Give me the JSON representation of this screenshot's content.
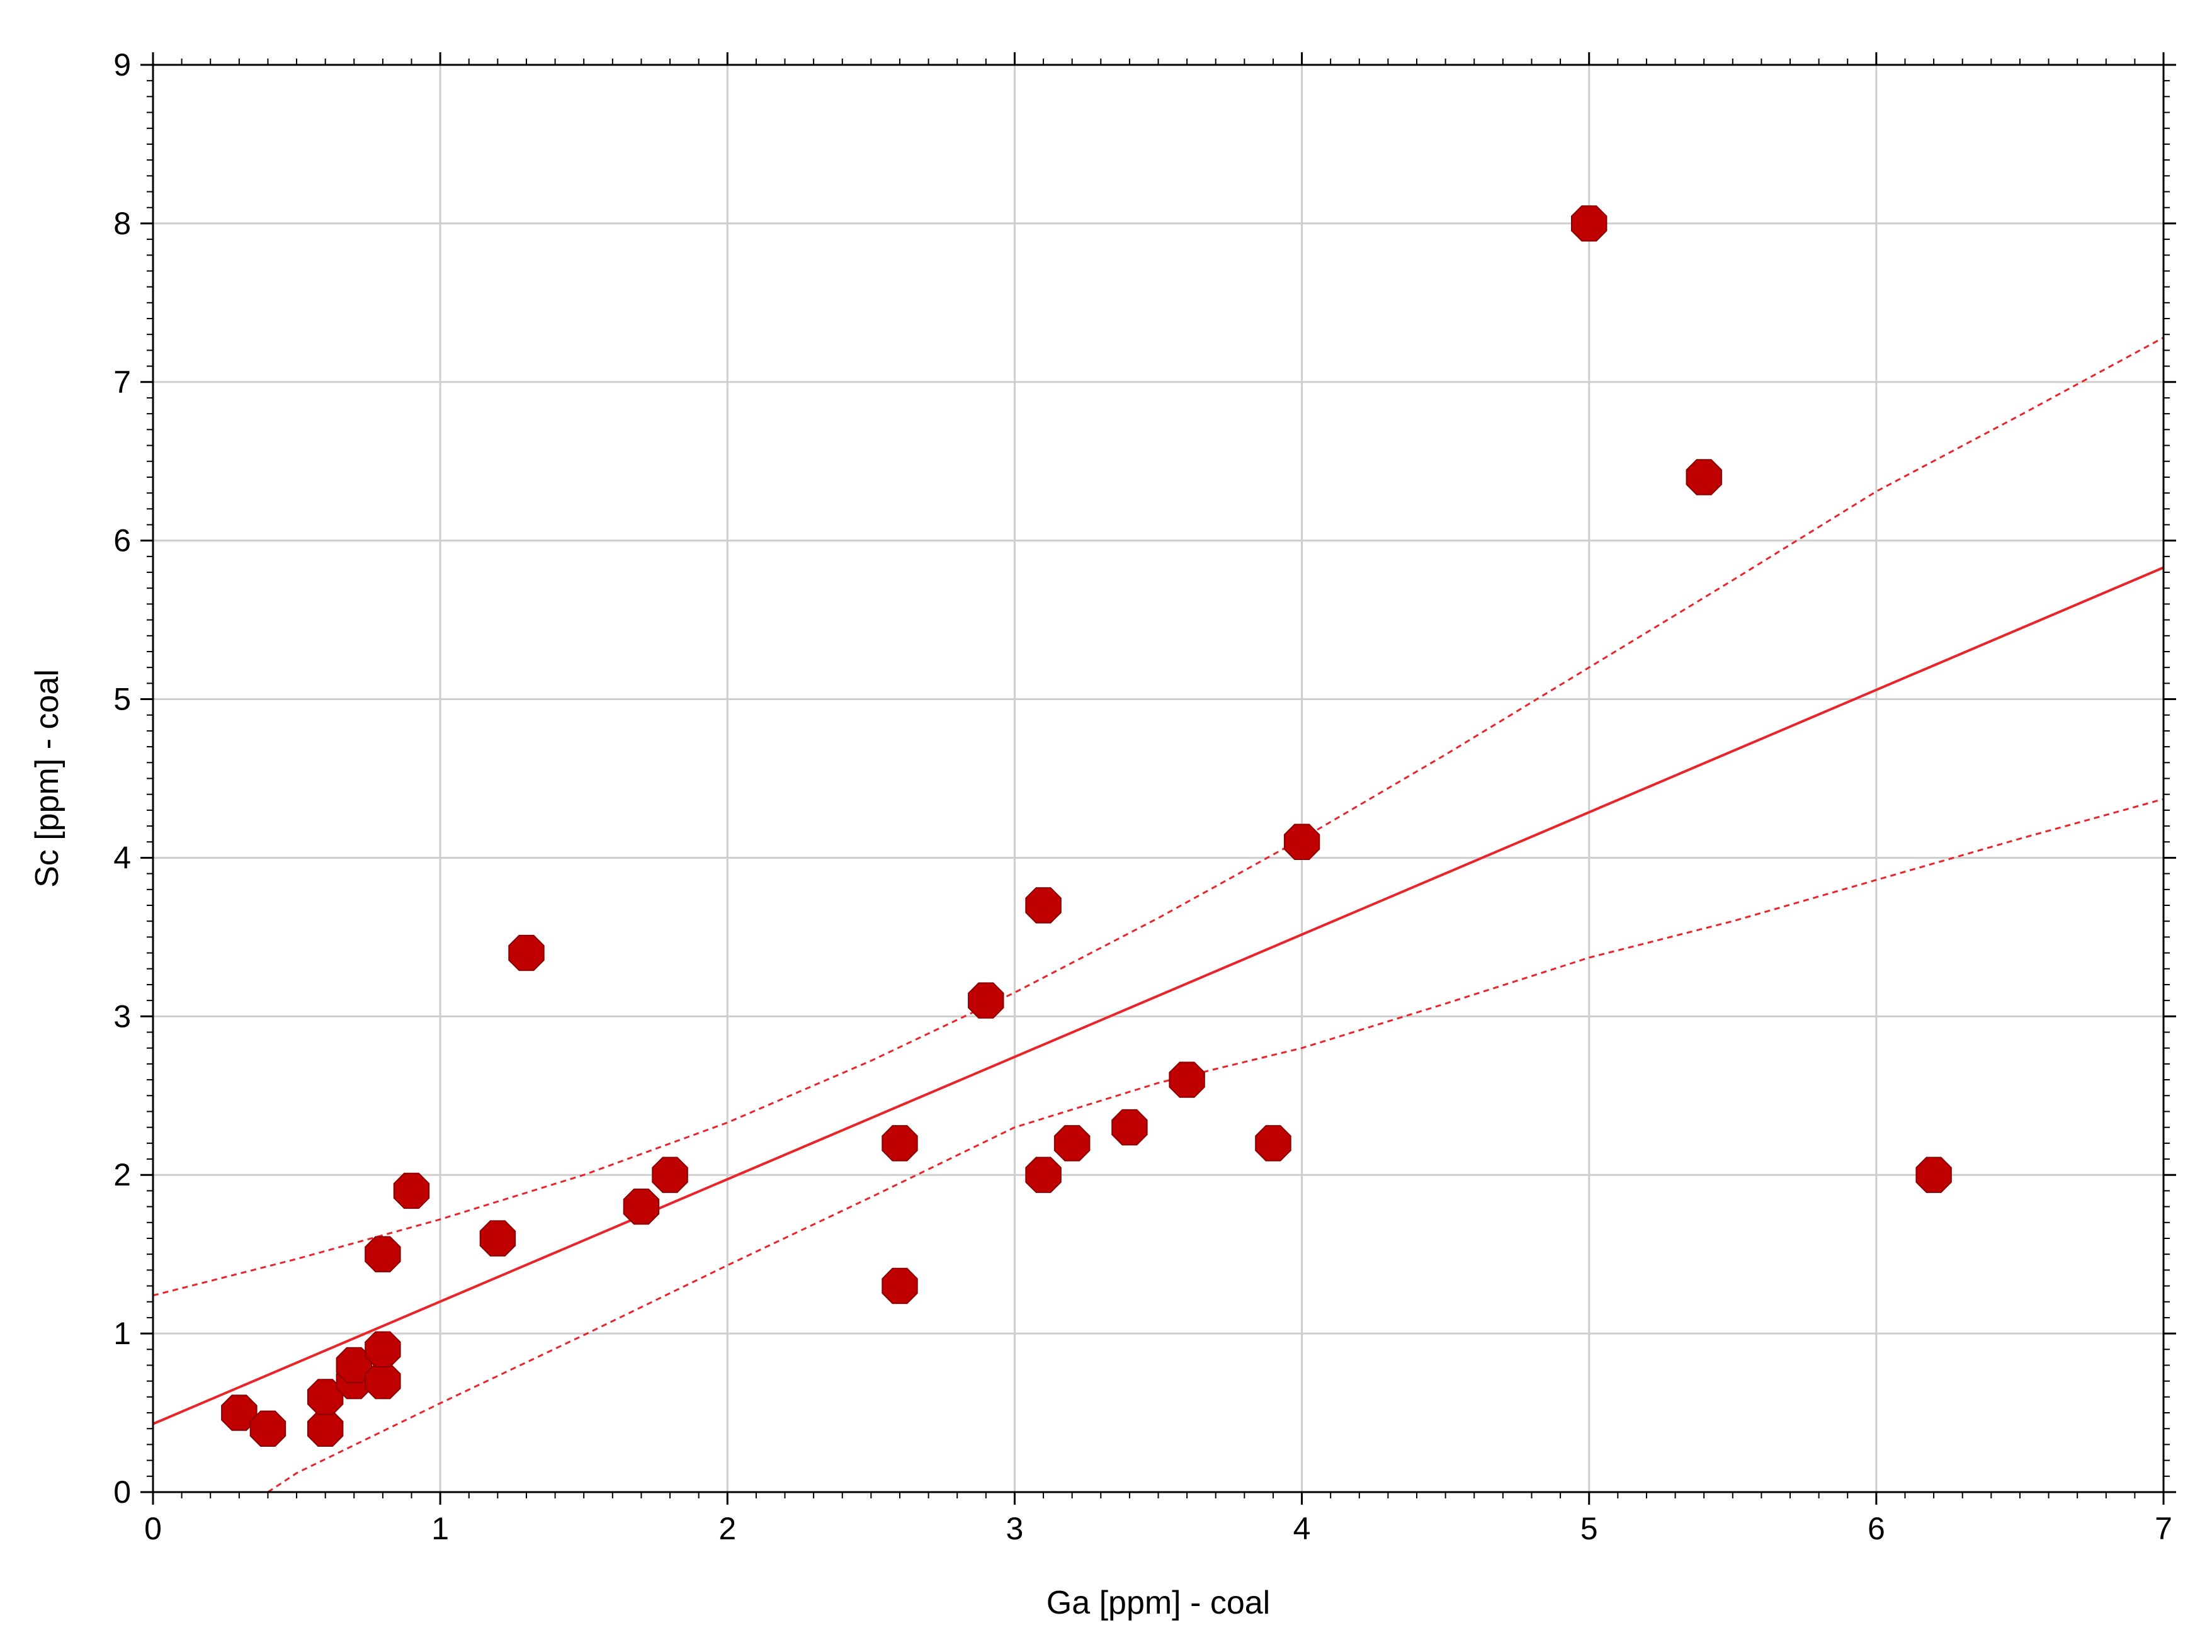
{
  "chart_data": {
    "type": "scatter",
    "xlabel": "Ga [ppm] - coal",
    "ylabel": "Sc [ppm] - coal",
    "xlim": [
      0,
      7
    ],
    "ylim": [
      0,
      9
    ],
    "xticks": [
      "0",
      "1",
      "2",
      "3",
      "4",
      "5",
      "6",
      "7"
    ],
    "yticks": [
      "0",
      "1",
      "2",
      "3",
      "4",
      "5",
      "6",
      "7",
      "8",
      "9"
    ],
    "grid": true,
    "colors": {
      "points": "#c00000",
      "fit_line": "#e8252a",
      "grid": "#cfcfcf"
    },
    "series": [
      {
        "type": "scatter",
        "x": [
          0.3,
          0.4,
          0.6,
          0.6,
          0.7,
          0.7,
          0.8,
          0.8,
          0.8,
          0.9,
          1.2,
          1.3,
          1.7,
          1.8,
          2.6,
          2.6,
          2.9,
          3.1,
          3.1,
          3.2,
          3.4,
          3.6,
          3.9,
          4.0,
          5.0,
          5.4,
          6.2
        ],
        "y": [
          0.5,
          0.4,
          0.4,
          0.6,
          0.7,
          0.8,
          0.7,
          0.9,
          1.5,
          1.9,
          1.6,
          3.4,
          1.8,
          2.0,
          1.3,
          2.2,
          3.1,
          2.0,
          3.7,
          2.2,
          2.3,
          2.6,
          2.2,
          4.1,
          8.0,
          6.4,
          2.0
        ]
      },
      {
        "type": "line",
        "style": "solid",
        "x": [
          0,
          7
        ],
        "y": [
          0.43,
          5.83
        ]
      },
      {
        "type": "line",
        "style": "dashed",
        "x": [
          0,
          0.5,
          1,
          1.5,
          2,
          2.5,
          3,
          3.5,
          4,
          4.5,
          5,
          5.5,
          6,
          6.5,
          7
        ],
        "y": [
          1.24,
          1.47,
          1.72,
          2.0,
          2.33,
          2.72,
          3.15,
          3.62,
          4.12,
          4.65,
          5.2,
          5.75,
          6.31,
          6.79,
          7.28
        ]
      },
      {
        "type": "line",
        "style": "dashed",
        "x": [
          0.4,
          0.5,
          1,
          1.5,
          2,
          2.5,
          3,
          3.5,
          4,
          4.5,
          5,
          5.5,
          6,
          6.5,
          7
        ],
        "y": [
          0.0,
          0.12,
          0.56,
          0.99,
          1.43,
          1.86,
          2.3,
          2.58,
          2.8,
          3.08,
          3.37,
          3.6,
          3.86,
          4.12,
          4.37
        ]
      }
    ]
  }
}
